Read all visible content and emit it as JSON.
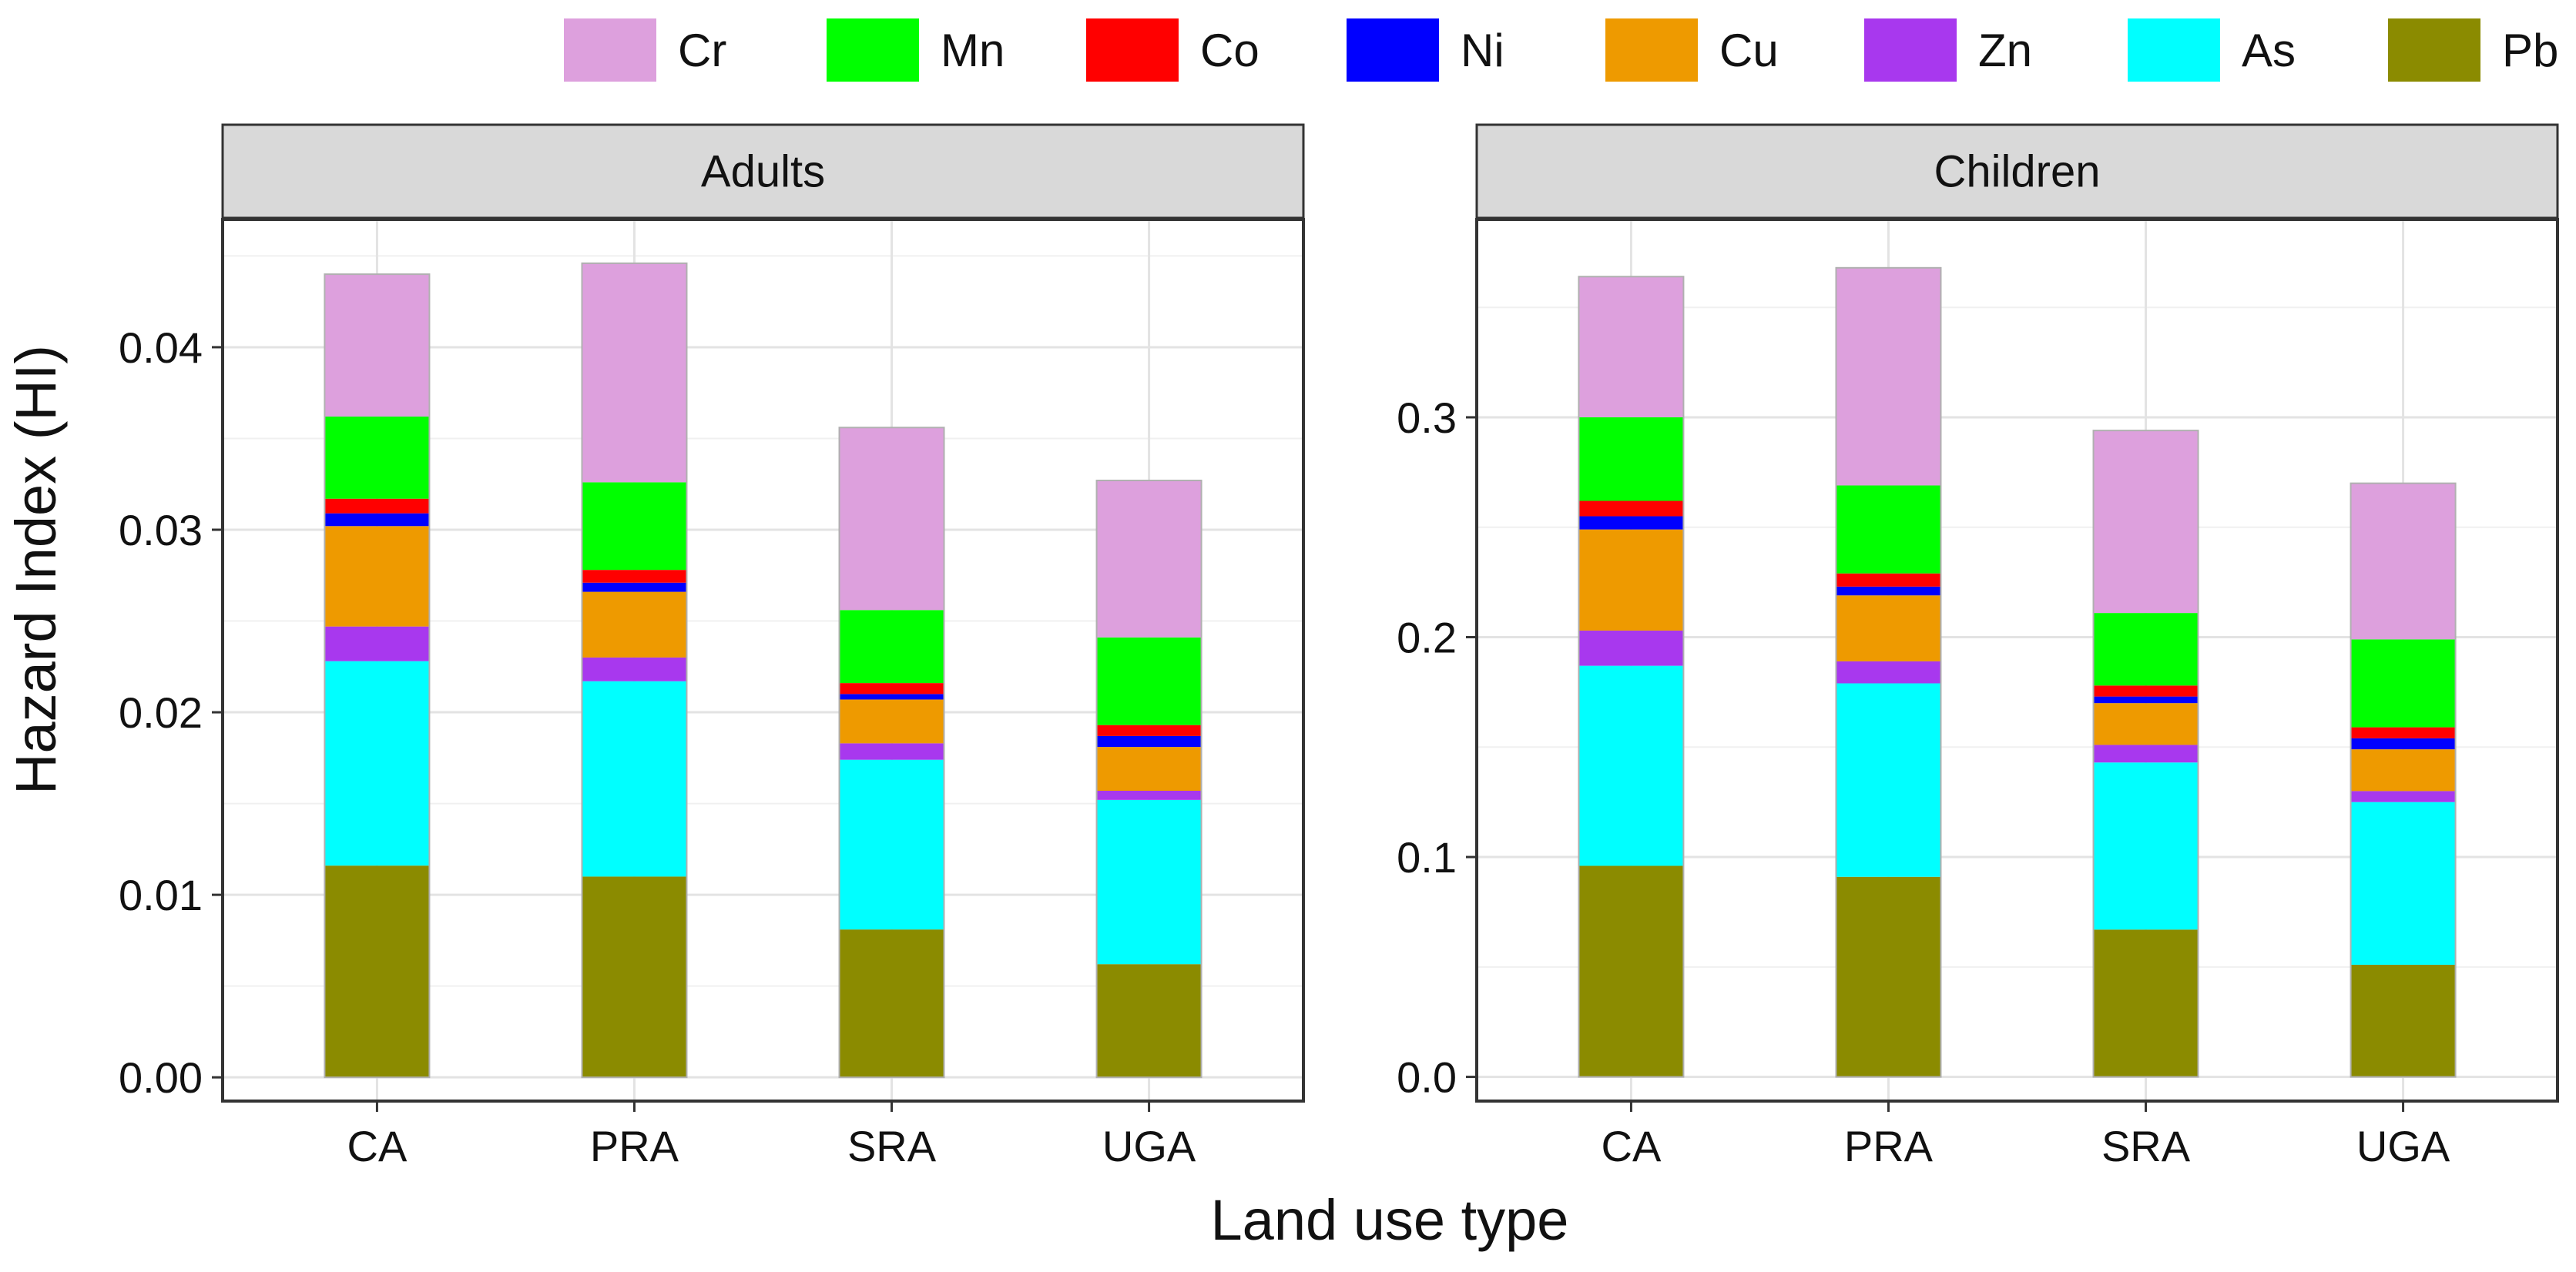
{
  "chart_data": {
    "type": "bar",
    "stacked": true,
    "xlabel": "Land use type",
    "ylabel": "Hazard Index (HI)",
    "categories": [
      "CA",
      "PRA",
      "SRA",
      "UGA"
    ],
    "stack_order_bottom_to_top": [
      "Pb",
      "As",
      "Zn",
      "Cu",
      "Ni",
      "Co",
      "Mn",
      "Cr"
    ],
    "legend": {
      "position": "top",
      "entries": [
        {
          "name": "Cr",
          "color": "#DDA0DD"
        },
        {
          "name": "Mn",
          "color": "#00FF00"
        },
        {
          "name": "Co",
          "color": "#FF0000"
        },
        {
          "name": "Ni",
          "color": "#0000FF"
        },
        {
          "name": "Cu",
          "color": "#EE9A00"
        },
        {
          "name": "Zn",
          "color": "#A838EE"
        },
        {
          "name": "As",
          "color": "#00FFFF"
        },
        {
          "name": "Pb",
          "color": "#8B8B00"
        }
      ]
    },
    "grid": true,
    "panels": [
      {
        "strip": "Adults",
        "ylim": [
          -0.0013,
          0.047
        ],
        "yticks": [
          0.0,
          0.01,
          0.02,
          0.03,
          0.04
        ],
        "ytick_labels": [
          "0.00",
          "0.01",
          "0.02",
          "0.03",
          "0.04"
        ],
        "series": [
          {
            "name": "Pb",
            "values": [
              0.0116,
              0.011,
              0.0081,
              0.0062
            ]
          },
          {
            "name": "As",
            "values": [
              0.0112,
              0.0107,
              0.0093,
              0.009
            ]
          },
          {
            "name": "Zn",
            "values": [
              0.0019,
              0.0013,
              0.0009,
              0.0005
            ]
          },
          {
            "name": "Cu",
            "values": [
              0.0055,
              0.0036,
              0.0024,
              0.0024
            ]
          },
          {
            "name": "Ni",
            "values": [
              0.0007,
              0.0005,
              0.0003,
              0.0006
            ]
          },
          {
            "name": "Co",
            "values": [
              0.0008,
              0.0007,
              0.0006,
              0.0006
            ]
          },
          {
            "name": "Mn",
            "values": [
              0.0045,
              0.0048,
              0.004,
              0.0048
            ]
          },
          {
            "name": "Cr",
            "values": [
              0.0078,
              0.012,
              0.01,
              0.0086
            ]
          }
        ]
      },
      {
        "strip": "Children",
        "ylim": [
          -0.011,
          0.39
        ],
        "yticks": [
          0.0,
          0.1,
          0.2,
          0.3
        ],
        "ytick_labels": [
          "0.0",
          "0.1",
          "0.2",
          "0.3"
        ],
        "series": [
          {
            "name": "Pb",
            "values": [
              0.096,
              0.091,
              0.067,
              0.051
            ]
          },
          {
            "name": "As",
            "values": [
              0.091,
              0.088,
              0.076,
              0.074
            ]
          },
          {
            "name": "Zn",
            "values": [
              0.016,
              0.01,
              0.008,
              0.005
            ]
          },
          {
            "name": "Cu",
            "values": [
              0.046,
              0.03,
              0.019,
              0.019
            ]
          },
          {
            "name": "Ni",
            "values": [
              0.006,
              0.004,
              0.003,
              0.005
            ]
          },
          {
            "name": "Co",
            "values": [
              0.007,
              0.006,
              0.005,
              0.005
            ]
          },
          {
            "name": "Mn",
            "values": [
              0.038,
              0.04,
              0.033,
              0.04
            ]
          },
          {
            "name": "Cr",
            "values": [
              0.064,
              0.099,
              0.083,
              0.071
            ]
          }
        ]
      }
    ]
  }
}
